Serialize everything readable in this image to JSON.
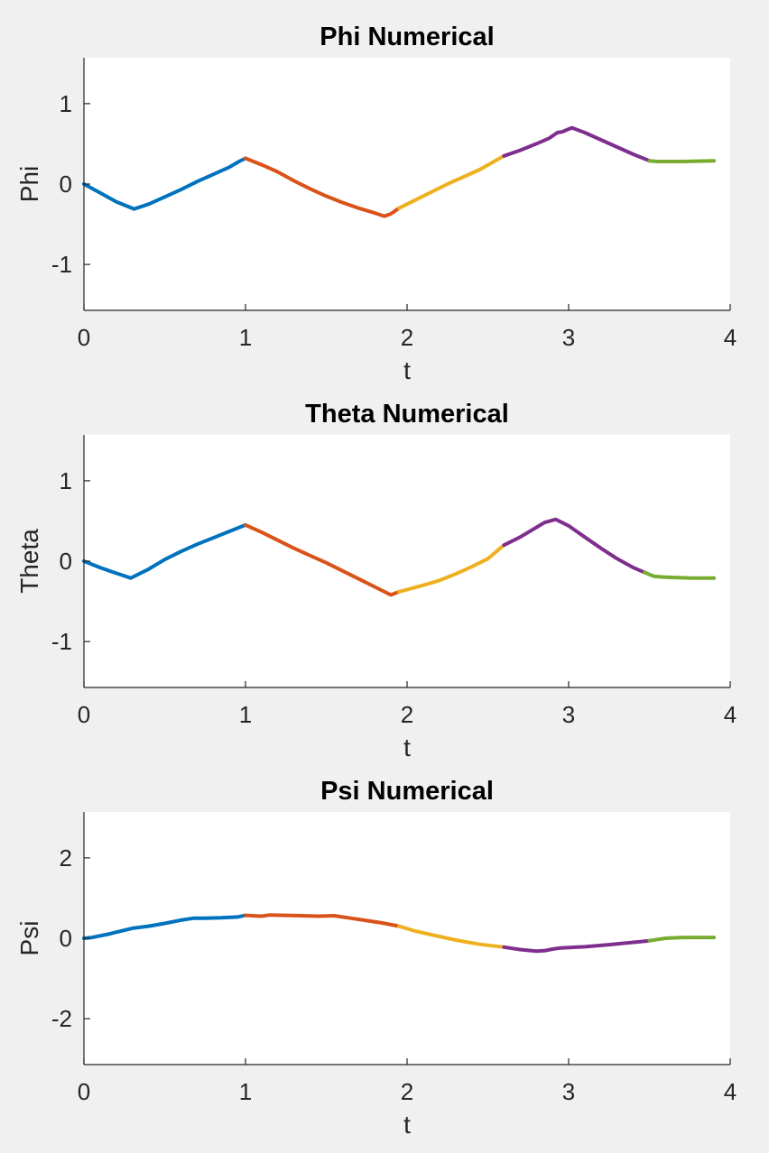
{
  "chart_data": [
    {
      "type": "line",
      "title": "Phi Numerical",
      "xlabel": "t",
      "ylabel": "Phi",
      "xlim": [
        0,
        4
      ],
      "ylim": [
        -1.571,
        1.571
      ],
      "xticks": [
        "0",
        "1",
        "2",
        "3",
        "4"
      ],
      "yticks": [
        "-1",
        "0",
        "1"
      ],
      "ytick_values": [
        -1,
        0,
        1
      ],
      "grid": false,
      "series": [
        {
          "color": "#0072BD",
          "x": [
            0,
            0.1,
            0.2,
            0.31,
            0.4,
            0.5,
            0.6,
            0.7,
            0.8,
            0.9,
            0.96,
            1.0
          ],
          "y": [
            0,
            -0.11,
            -0.22,
            -0.31,
            -0.25,
            -0.16,
            -0.07,
            0.03,
            0.12,
            0.21,
            0.28,
            0.32
          ]
        },
        {
          "color": "#D95319",
          "x": [
            1.0,
            1.1,
            1.2,
            1.3,
            1.4,
            1.5,
            1.6,
            1.7,
            1.8,
            1.86,
            1.9,
            1.95
          ],
          "y": [
            0.32,
            0.24,
            0.15,
            0.04,
            -0.06,
            -0.15,
            -0.23,
            -0.3,
            -0.36,
            -0.4,
            -0.37,
            -0.3
          ]
        },
        {
          "color": "#EDB120",
          "x": [
            1.95,
            2.05,
            2.15,
            2.25,
            2.35,
            2.45,
            2.6
          ],
          "y": [
            -0.3,
            -0.2,
            -0.1,
            0.0,
            0.09,
            0.18,
            0.35
          ]
        },
        {
          "color": "#7E2F8E",
          "x": [
            2.6,
            2.7,
            2.8,
            2.88,
            2.93,
            2.96,
            3.02,
            3.1,
            3.2,
            3.3,
            3.4,
            3.5
          ],
          "y": [
            0.35,
            0.42,
            0.5,
            0.57,
            0.64,
            0.65,
            0.7,
            0.64,
            0.55,
            0.46,
            0.37,
            0.29
          ]
        },
        {
          "color": "#77AC30",
          "x": [
            3.5,
            3.55,
            3.7,
            3.9
          ],
          "y": [
            0.29,
            0.28,
            0.28,
            0.29
          ]
        }
      ]
    },
    {
      "type": "line",
      "title": "Theta Numerical",
      "xlabel": "t",
      "ylabel": "Theta",
      "xlim": [
        0,
        4
      ],
      "ylim": [
        -1.571,
        1.571
      ],
      "xticks": [
        "0",
        "1",
        "2",
        "3",
        "4"
      ],
      "yticks": [
        "-1",
        "0",
        "1"
      ],
      "ytick_values": [
        -1,
        0,
        1
      ],
      "grid": false,
      "series": [
        {
          "color": "#0072BD",
          "x": [
            0,
            0.1,
            0.2,
            0.29,
            0.4,
            0.5,
            0.6,
            0.7,
            0.8,
            0.9,
            1.0
          ],
          "y": [
            0,
            -0.08,
            -0.15,
            -0.21,
            -0.1,
            0.02,
            0.12,
            0.21,
            0.29,
            0.37,
            0.45
          ]
        },
        {
          "color": "#D95319",
          "x": [
            1.0,
            1.1,
            1.2,
            1.3,
            1.4,
            1.5,
            1.6,
            1.7,
            1.8,
            1.9,
            1.95
          ],
          "y": [
            0.45,
            0.36,
            0.26,
            0.16,
            0.07,
            -0.02,
            -0.12,
            -0.22,
            -0.32,
            -0.42,
            -0.38
          ]
        },
        {
          "color": "#EDB120",
          "x": [
            1.95,
            2.1,
            2.2,
            2.3,
            2.4,
            2.5,
            2.6
          ],
          "y": [
            -0.38,
            -0.3,
            -0.24,
            -0.16,
            -0.07,
            0.03,
            0.2
          ]
        },
        {
          "color": "#7E2F8E",
          "x": [
            2.6,
            2.7,
            2.8,
            2.85,
            2.92,
            3.0,
            3.1,
            3.2,
            3.3,
            3.4,
            3.47
          ],
          "y": [
            0.2,
            0.3,
            0.42,
            0.48,
            0.52,
            0.44,
            0.3,
            0.16,
            0.03,
            -0.08,
            -0.14
          ]
        },
        {
          "color": "#77AC30",
          "x": [
            3.47,
            3.53,
            3.6,
            3.75,
            3.9
          ],
          "y": [
            -0.14,
            -0.19,
            -0.2,
            -0.21,
            -0.21
          ]
        }
      ]
    },
    {
      "type": "line",
      "title": "Psi Numerical",
      "xlabel": "t",
      "ylabel": "Psi",
      "xlim": [
        0,
        4
      ],
      "ylim": [
        -3.1416,
        3.1416
      ],
      "xticks": [
        "0",
        "1",
        "2",
        "3",
        "4"
      ],
      "yticks": [
        "-2",
        "0",
        "2"
      ],
      "ytick_values": [
        -2,
        0,
        2
      ],
      "grid": false,
      "series": [
        {
          "color": "#0072BD",
          "x": [
            0,
            0.05,
            0.15,
            0.3,
            0.4,
            0.5,
            0.6,
            0.68,
            0.75,
            0.85,
            0.95,
            1.0
          ],
          "y": [
            0,
            0.02,
            0.1,
            0.25,
            0.3,
            0.37,
            0.45,
            0.5,
            0.5,
            0.51,
            0.53,
            0.57
          ]
        },
        {
          "color": "#D95319",
          "x": [
            1.0,
            1.1,
            1.15,
            1.25,
            1.35,
            1.45,
            1.55,
            1.65,
            1.75,
            1.85,
            1.95
          ],
          "y": [
            0.57,
            0.55,
            0.58,
            0.57,
            0.56,
            0.55,
            0.56,
            0.5,
            0.44,
            0.38,
            0.3
          ]
        },
        {
          "color": "#EDB120",
          "x": [
            1.95,
            2.05,
            2.15,
            2.25,
            2.35,
            2.45,
            2.6
          ],
          "y": [
            0.3,
            0.18,
            0.09,
            0.0,
            -0.08,
            -0.15,
            -0.22
          ]
        },
        {
          "color": "#7E2F8E",
          "x": [
            2.6,
            2.7,
            2.8,
            2.85,
            2.9,
            2.95,
            3.1,
            3.25,
            3.4,
            3.5
          ],
          "y": [
            -0.22,
            -0.28,
            -0.32,
            -0.31,
            -0.27,
            -0.24,
            -0.21,
            -0.16,
            -0.1,
            -0.06
          ]
        },
        {
          "color": "#77AC30",
          "x": [
            3.5,
            3.6,
            3.7,
            3.8,
            3.9
          ],
          "y": [
            -0.06,
            0.0,
            0.02,
            0.02,
            0.02
          ]
        }
      ]
    }
  ]
}
